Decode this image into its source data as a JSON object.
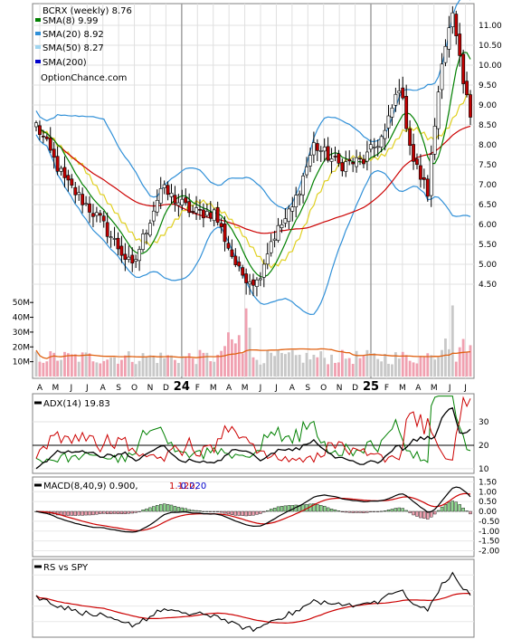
{
  "chart_data": [
    {
      "type": "candlestick",
      "panel": "price",
      "title": "BCRX (weekly) 8.76",
      "watermark": "OptionChance.com",
      "legend": [
        {
          "label": "SMA(8) 9.99",
          "color": "#008000"
        },
        {
          "label": "SMA(20) 8.92",
          "color": "#3090d8"
        },
        {
          "label": "SMA(50) 8.27",
          "color": "#9fd5f0"
        },
        {
          "label": "SMA(200)",
          "color": "#0000cc"
        }
      ],
      "legend_placement": "top-left",
      "y_ticks": [
        "11.00",
        "10.50",
        "10.00",
        "9.50",
        "9.00",
        "8.50",
        "8.00",
        "7.50",
        "7.00",
        "6.50",
        "6.00",
        "5.50",
        "5.00",
        "4.50"
      ],
      "ylim": [
        4.3,
        11.5
      ],
      "x_ticks": [
        "A",
        "M",
        "J",
        "J",
        "A",
        "S",
        "O",
        "N",
        "D",
        "24",
        "F",
        "M",
        "A",
        "M",
        "J",
        "J",
        "A",
        "S",
        "O",
        "N",
        "D",
        "25",
        "F",
        "M",
        "A",
        "M",
        "J",
        "J"
      ],
      "grid": true,
      "key_points": [
        {
          "week": 0,
          "close": 8.5
        },
        {
          "week": 8,
          "close": 7.1
        },
        {
          "week": 18,
          "close": 6.1
        },
        {
          "week": 27,
          "close": 4.9
        },
        {
          "week": 35,
          "close": 6.9
        },
        {
          "week": 44,
          "close": 6.3
        },
        {
          "week": 50,
          "close": 6.3
        },
        {
          "week": 57,
          "close": 4.8
        },
        {
          "week": 62,
          "close": 4.55
        },
        {
          "week": 66,
          "close": 5.6
        },
        {
          "week": 72,
          "close": 6.4
        },
        {
          "week": 78,
          "close": 8.0
        },
        {
          "week": 85,
          "close": 7.5
        },
        {
          "week": 92,
          "close": 7.6
        },
        {
          "week": 98,
          "close": 8.3
        },
        {
          "week": 102,
          "close": 9.5
        },
        {
          "week": 106,
          "close": 7.6
        },
        {
          "week": 110,
          "close": 6.8
        },
        {
          "week": 114,
          "close": 10.2
        },
        {
          "week": 117,
          "close": 11.2
        },
        {
          "week": 120,
          "close": 9.5
        },
        {
          "week": 122,
          "close": 8.76
        }
      ]
    },
    {
      "type": "bar",
      "panel": "volume",
      "y_ticks": [
        "50M",
        "40M",
        "30M",
        "20M",
        "10M"
      ],
      "ylim": [
        0,
        55
      ],
      "series_colors": {
        "up": "#c8c8c8",
        "down": "#f0a0b0",
        "average": "#e06010"
      }
    },
    {
      "type": "line",
      "panel": "adx",
      "label": "ADX(14) 19.83",
      "y_ticks": [
        "30",
        "20",
        "10"
      ],
      "ylim": [
        8,
        42
      ],
      "series_colors": {
        "adx": "#000000",
        "plus_di": "#008000",
        "minus_di": "#cc0000"
      }
    },
    {
      "type": "line",
      "panel": "macd",
      "label": "MACD(8,40,9) 0.900,",
      "signal_value": "1.120,",
      "hist_value": "-0.220",
      "y_ticks": [
        "1.50",
        "1.00",
        "0.50",
        "0.00",
        "-0.50",
        "-1.00",
        "-1.50",
        "-2.00"
      ],
      "ylim": [
        -2.3,
        1.75
      ],
      "series_colors": {
        "macd": "#000000",
        "signal": "#cc0000",
        "hist_up": "#90d890",
        "hist_down": "#f0a0b0"
      }
    },
    {
      "type": "line",
      "panel": "rs",
      "label": "RS vs SPY",
      "series_colors": {
        "rs": "#000000",
        "average": "#cc0000"
      }
    }
  ]
}
